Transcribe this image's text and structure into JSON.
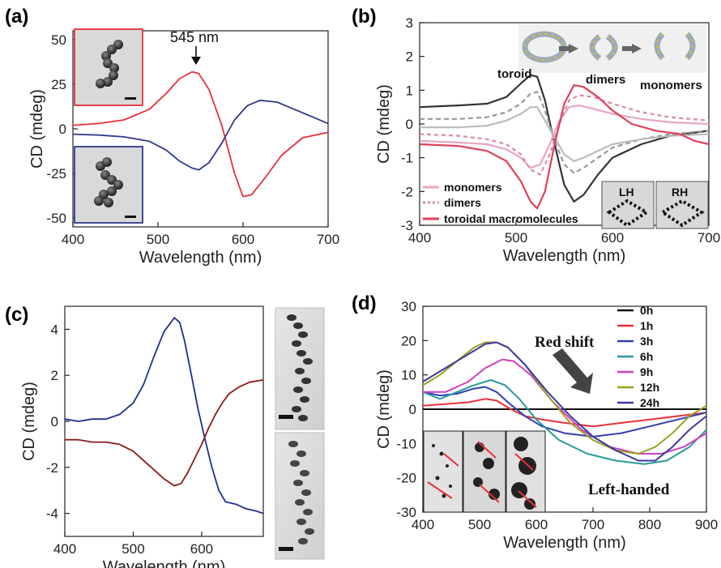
{
  "panel_labels": {
    "a": "(a)",
    "b": "(b)",
    "c": "(c)",
    "d": "(d)"
  },
  "colors": {
    "red": "#e8303a",
    "navy": "#2e3a8a",
    "c_blue": "#1f2f8f",
    "c_red": "#8a1a1a"
  },
  "chart_data": [
    {
      "id": "a",
      "type": "line",
      "xlabel": "Wavelength (nm)",
      "ylabel": "CD (mdeg)",
      "xlim": [
        400,
        700
      ],
      "ylim": [
        -55,
        55
      ],
      "xticks": [
        400,
        500,
        600,
        700
      ],
      "yticks": [
        -50,
        -25,
        0,
        25,
        50
      ],
      "annotation": "545 nm",
      "series": [
        {
          "color": "#e8303a",
          "x": [
            400,
            430,
            460,
            490,
            510,
            525,
            540,
            548,
            560,
            575,
            590,
            600,
            610,
            625,
            645,
            670,
            700
          ],
          "y": [
            2,
            3,
            5,
            11,
            20,
            28,
            32,
            31,
            22,
            2,
            -25,
            -38,
            -37,
            -28,
            -15,
            -5,
            -2
          ]
        },
        {
          "color": "#2e3a8a",
          "x": [
            400,
            430,
            460,
            490,
            510,
            525,
            540,
            548,
            560,
            575,
            590,
            605,
            620,
            640,
            660,
            680,
            700
          ],
          "y": [
            -3,
            -3.5,
            -4.5,
            -7,
            -12,
            -18,
            -22,
            -23,
            -19,
            -8,
            5,
            13,
            16,
            15,
            11,
            7,
            3
          ]
        }
      ]
    },
    {
      "id": "b",
      "type": "line",
      "xlabel": "Wavelength (nm)",
      "ylabel": "CD (mdeg)",
      "xlim": [
        400,
        700
      ],
      "ylim": [
        -3,
        3
      ],
      "xticks": [
        400,
        500,
        600,
        700
      ],
      "yticks": [
        -3,
        -2,
        -1,
        0,
        1,
        2,
        3
      ],
      "legend_position": "bottom-left",
      "legend": [
        "monomers",
        "dimers",
        "toroidal macromolecules"
      ],
      "scheme_labels": [
        "toroid",
        "dimers",
        "monomers"
      ],
      "inset_labels": [
        "LH",
        "RH"
      ],
      "series": [
        {
          "color": "#333333",
          "dash": "",
          "x": [
            400,
            440,
            470,
            490,
            505,
            515,
            522,
            530,
            540,
            550,
            560,
            570,
            585,
            600,
            630,
            660,
            700
          ],
          "y": [
            0.5,
            0.55,
            0.6,
            0.8,
            1.2,
            1.45,
            1.4,
            0.7,
            -0.6,
            -1.8,
            -2.3,
            -2.1,
            -1.5,
            -1.0,
            -0.6,
            -0.35,
            -0.2
          ]
        },
        {
          "color": "#999999",
          "dash": "6,4",
          "x": [
            400,
            440,
            470,
            490,
            505,
            515,
            522,
            530,
            540,
            550,
            560,
            570,
            585,
            600,
            630,
            660,
            700
          ],
          "y": [
            0.15,
            0.15,
            0.2,
            0.35,
            0.6,
            0.9,
            0.95,
            0.4,
            -0.5,
            -1.2,
            -1.45,
            -1.3,
            -1.0,
            -0.7,
            -0.45,
            -0.3,
            -0.2
          ]
        },
        {
          "color": "#bbbbbb",
          "dash": "",
          "x": [
            400,
            440,
            470,
            490,
            505,
            515,
            522,
            530,
            540,
            550,
            560,
            570,
            585,
            600,
            630,
            660,
            700
          ],
          "y": [
            -0.1,
            -0.1,
            -0.05,
            0.1,
            0.3,
            0.5,
            0.5,
            0.1,
            -0.4,
            -0.9,
            -1.1,
            -1.0,
            -0.8,
            -0.6,
            -0.45,
            -0.35,
            -0.3
          ]
        },
        {
          "color": "#e8a6c4",
          "dash": "",
          "x": [
            400,
            440,
            470,
            490,
            505,
            515,
            525,
            535,
            545,
            555,
            565,
            580,
            600,
            630,
            660,
            700
          ],
          "y": [
            -0.5,
            -0.55,
            -0.6,
            -0.75,
            -1.0,
            -1.3,
            -1.2,
            -0.6,
            0.1,
            0.5,
            0.55,
            0.45,
            0.3,
            0.15,
            0.05,
            0.0
          ]
        },
        {
          "color": "#d98aa8",
          "dash": "5,4",
          "x": [
            400,
            440,
            470,
            490,
            505,
            515,
            525,
            535,
            545,
            555,
            565,
            580,
            600,
            630,
            660,
            700
          ],
          "y": [
            -0.3,
            -0.35,
            -0.45,
            -0.6,
            -0.9,
            -1.35,
            -1.5,
            -0.9,
            0.0,
            0.7,
            0.85,
            0.8,
            0.6,
            0.35,
            0.2,
            0.1
          ]
        },
        {
          "color": "#e0405a",
          "dash": "",
          "x": [
            400,
            440,
            470,
            490,
            505,
            515,
            522,
            530,
            540,
            550,
            560,
            570,
            585,
            600,
            620,
            645,
            670,
            685,
            700
          ],
          "y": [
            -0.6,
            -0.65,
            -0.8,
            -1.1,
            -1.7,
            -2.3,
            -2.5,
            -2.0,
            -0.6,
            0.6,
            1.15,
            1.1,
            0.8,
            0.4,
            0.0,
            -0.2,
            -0.3,
            -0.5,
            -0.6
          ]
        }
      ]
    },
    {
      "id": "c",
      "type": "line",
      "xlabel": "Wavelength (nm)",
      "ylabel": "CD (mdeg)",
      "xlim": [
        400,
        690
      ],
      "ylim": [
        -5,
        5
      ],
      "xticks": [
        400,
        500,
        600
      ],
      "yticks": [
        -4,
        -2,
        0,
        2,
        4
      ],
      "series": [
        {
          "color": "#1f2f8f",
          "x": [
            400,
            420,
            440,
            460,
            480,
            500,
            515,
            530,
            545,
            560,
            568,
            575,
            585,
            595,
            605,
            615,
            625,
            635,
            650,
            665,
            680,
            690
          ],
          "y": [
            0.1,
            0.0,
            0.1,
            0.1,
            0.3,
            0.8,
            1.6,
            2.8,
            3.9,
            4.5,
            4.3,
            3.5,
            2.0,
            0.5,
            -0.8,
            -2.0,
            -3.0,
            -3.5,
            -3.6,
            -3.8,
            -3.9,
            -4.0
          ]
        },
        {
          "color": "#8a1a1a",
          "x": [
            400,
            420,
            440,
            460,
            480,
            500,
            515,
            530,
            545,
            560,
            570,
            580,
            590,
            600,
            610,
            620,
            630,
            640,
            655,
            670,
            690
          ],
          "y": [
            -0.8,
            -0.8,
            -0.9,
            -0.9,
            -1.0,
            -1.3,
            -1.7,
            -2.1,
            -2.5,
            -2.8,
            -2.7,
            -2.2,
            -1.6,
            -1.0,
            -0.3,
            0.3,
            0.8,
            1.2,
            1.5,
            1.7,
            1.8
          ]
        }
      ]
    },
    {
      "id": "d",
      "type": "line",
      "xlabel": "Wavelength (nm)",
      "ylabel": "CD (mdeg)",
      "xlim": [
        400,
        900
      ],
      "ylim": [
        -30,
        30
      ],
      "xticks": [
        400,
        500,
        600,
        700,
        800,
        900
      ],
      "yticks": [
        -30,
        -20,
        -10,
        0,
        10,
        20,
        30
      ],
      "legend_position": "top-right",
      "annotations": [
        "Red shift",
        "Left-handed"
      ],
      "series": [
        {
          "name": "0h",
          "color": "#111111",
          "x": [
            400,
            900
          ],
          "y": [
            0,
            0
          ]
        },
        {
          "name": "1h",
          "color": "#e8303a",
          "x": [
            400,
            440,
            480,
            510,
            530,
            555,
            580,
            610,
            650,
            700,
            750,
            800,
            850,
            900
          ],
          "y": [
            1,
            1.5,
            2,
            3,
            2.5,
            0,
            -2,
            -3,
            -4,
            -5,
            -4,
            -3,
            -2,
            -1
          ]
        },
        {
          "name": "3h",
          "color": "#3040b0",
          "x": [
            400,
            430,
            460,
            490,
            510,
            530,
            550,
            580,
            610,
            650,
            700,
            750,
            800,
            850,
            900
          ],
          "y": [
            5,
            4,
            4.5,
            6,
            6.5,
            5,
            2,
            -2,
            -5,
            -7,
            -8,
            -7,
            -5,
            -3,
            -1
          ]
        },
        {
          "name": "6h",
          "color": "#2a9a9a",
          "x": [
            400,
            430,
            460,
            490,
            520,
            545,
            570,
            600,
            640,
            690,
            740,
            790,
            830,
            870,
            900
          ],
          "y": [
            5,
            3,
            5,
            7,
            8.5,
            7,
            3,
            -3,
            -9,
            -13,
            -15,
            -16,
            -15,
            -11,
            -6
          ]
        },
        {
          "name": "9h",
          "color": "#d040c0",
          "x": [
            400,
            440,
            480,
            510,
            540,
            560,
            590,
            630,
            680,
            730,
            780,
            820,
            860,
            900
          ],
          "y": [
            5,
            5,
            8,
            12,
            14.5,
            14,
            10,
            2,
            -6,
            -11,
            -13,
            -13,
            -11,
            -7
          ]
        },
        {
          "name": "12h",
          "color": "#9aa020",
          "x": [
            400,
            430,
            460,
            490,
            510,
            530,
            550,
            580,
            620,
            660,
            700,
            740,
            780,
            810,
            840,
            870,
            900
          ],
          "y": [
            7,
            10,
            14,
            18,
            19.5,
            19.5,
            18,
            13,
            4,
            -4,
            -9,
            -12,
            -13,
            -11,
            -7,
            -2,
            1
          ]
        },
        {
          "name": "24h",
          "color": "#3a3aa0",
          "x": [
            400,
            430,
            460,
            490,
            510,
            530,
            550,
            580,
            620,
            660,
            700,
            740,
            780,
            810,
            840,
            870,
            900
          ],
          "y": [
            8,
            11,
            14,
            17,
            19,
            19.5,
            18,
            13,
            5,
            -2,
            -8,
            -12,
            -15,
            -15,
            -11,
            -6,
            -2
          ]
        }
      ]
    }
  ]
}
